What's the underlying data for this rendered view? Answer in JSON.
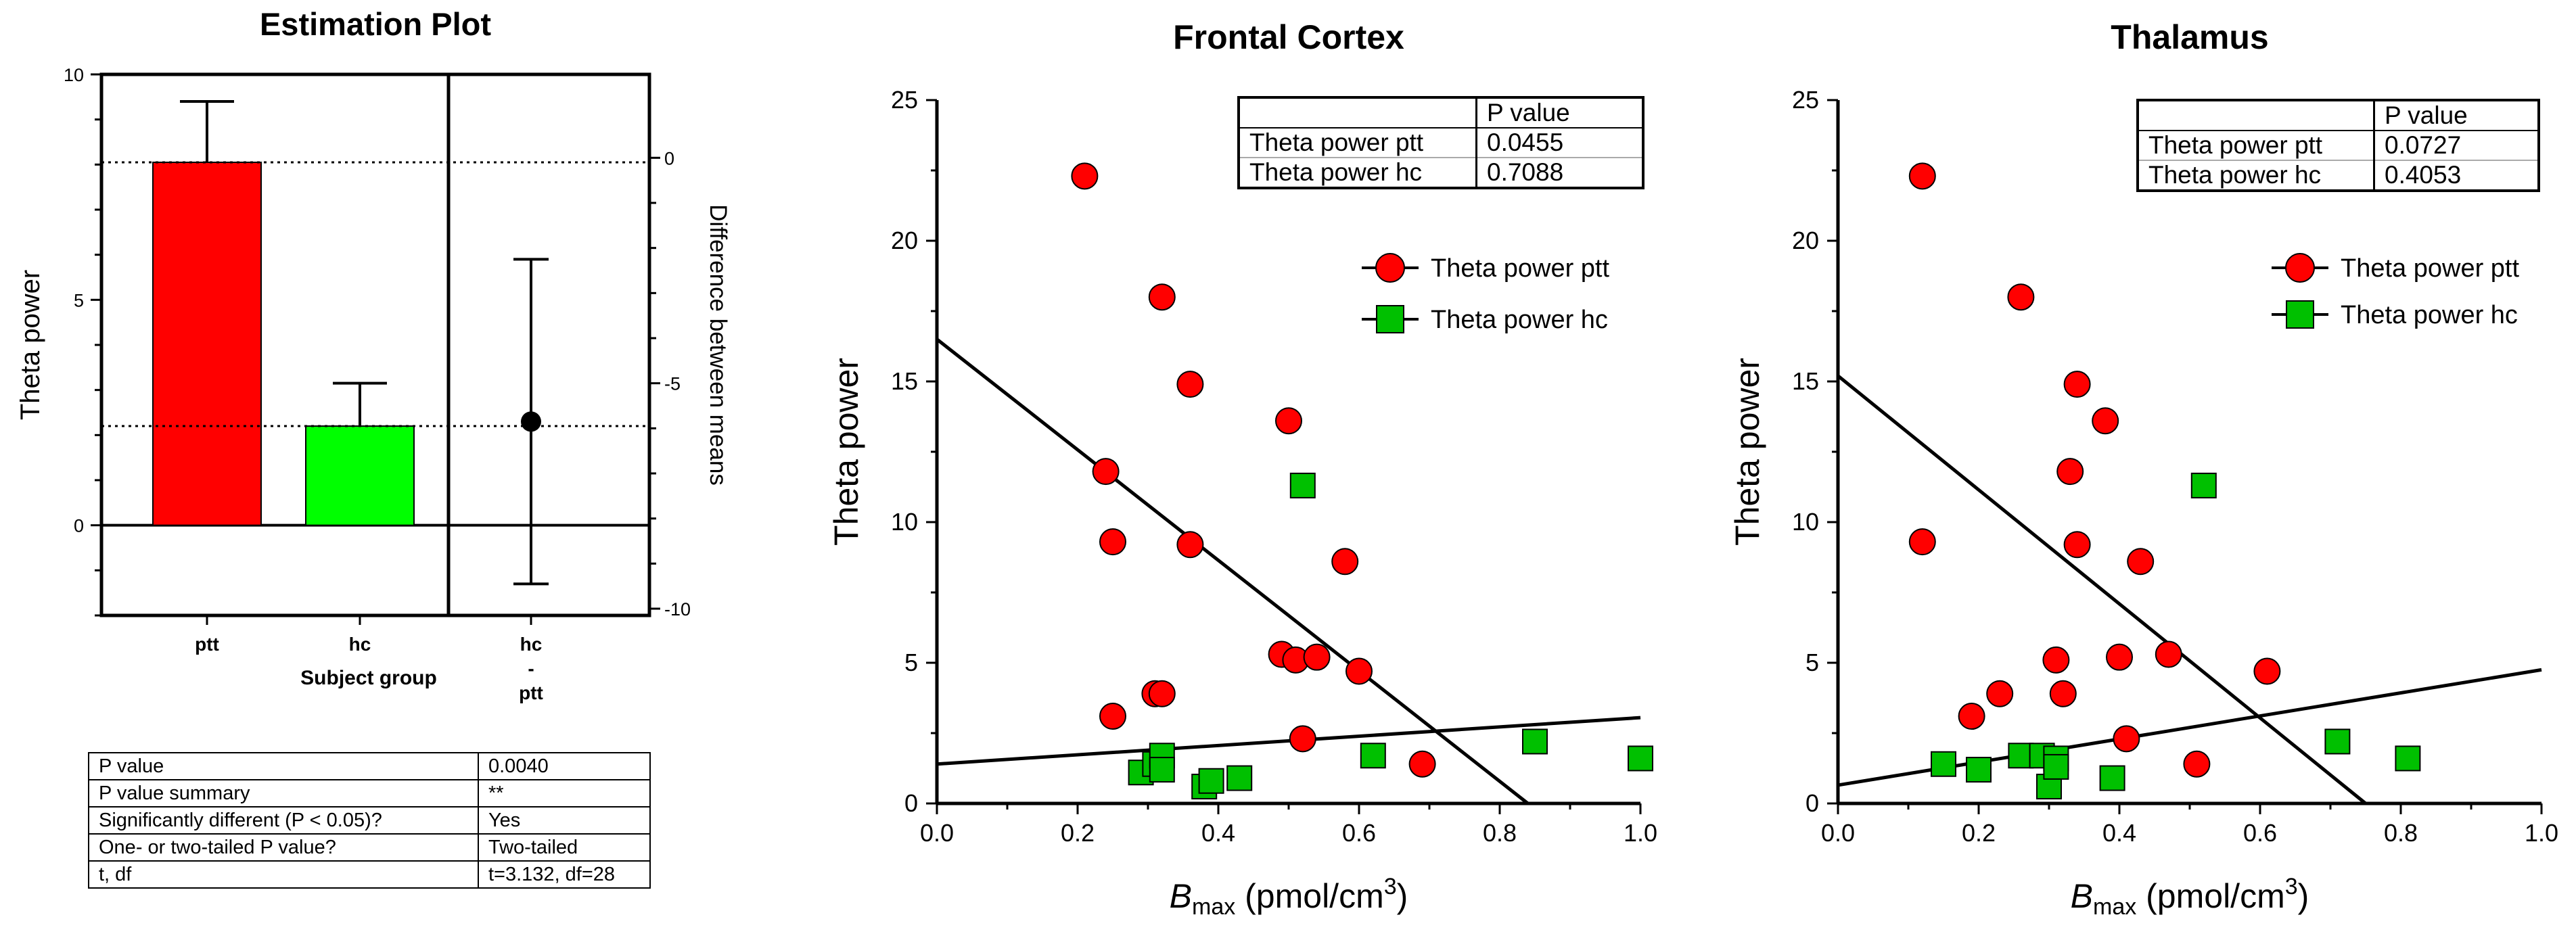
{
  "chart_data": [
    {
      "type": "bar",
      "title": "Estimation Plot",
      "xlabel": "Subject group",
      "ylabel": "Theta power",
      "right_ylabel": "Difference between means",
      "categories": [
        "ptt",
        "hc"
      ],
      "values": [
        8.05,
        2.2
      ],
      "error_upper": [
        9.4,
        3.15
      ],
      "bar_colors": [
        "#ff0000",
        "#00ff00"
      ],
      "ylim": [
        -2,
        10
      ],
      "yticks": [
        0,
        5,
        10
      ],
      "right_ylim": [
        -10.15,
        1.85
      ],
      "right_yticks": [
        0,
        -5,
        -10
      ],
      "difference": {
        "label_lines": [
          "hc",
          "-",
          "ptt"
        ],
        "mean": -5.85,
        "ci_low": -9.45,
        "ci_high": -2.25
      },
      "stats_table": [
        [
          "P value",
          "0.0040"
        ],
        [
          "P value summary",
          "**"
        ],
        [
          "Significantly different (P < 0.05)?",
          "Yes"
        ],
        [
          "One- or two-tailed P value?",
          "Two-tailed"
        ],
        [
          "t, df",
          "t=3.132, df=28"
        ]
      ]
    },
    {
      "type": "scatter",
      "title": "Frontal Cortex",
      "xlabel_main": "B",
      "xlabel_sub": "max",
      "xlabel_rest": " (pmol/cm",
      "xlabel_sup": "3",
      "xlabel_close": ")",
      "ylabel": "Theta power",
      "xlim": [
        0,
        1.0
      ],
      "ylim": [
        0,
        25
      ],
      "xticks": [
        "0.0",
        "0.2",
        "0.4",
        "0.6",
        "0.8",
        "1.0"
      ],
      "yticks": [
        "0",
        "5",
        "10",
        "15",
        "20",
        "25"
      ],
      "series": [
        {
          "name": "Theta power ptt",
          "marker": "circle",
          "color": "#ff0000",
          "points": [
            [
              0.21,
              22.3
            ],
            [
              0.24,
              11.8
            ],
            [
              0.25,
              9.3
            ],
            [
              0.25,
              3.1
            ],
            [
              0.31,
              3.9
            ],
            [
              0.32,
              3.9
            ],
            [
              0.32,
              18.0
            ],
            [
              0.36,
              14.9
            ],
            [
              0.36,
              9.2
            ],
            [
              0.49,
              5.3
            ],
            [
              0.5,
              13.6
            ],
            [
              0.51,
              5.1
            ],
            [
              0.52,
              2.3
            ],
            [
              0.54,
              5.2
            ],
            [
              0.58,
              8.6
            ],
            [
              0.6,
              4.7
            ],
            [
              0.69,
              1.4
            ]
          ]
        },
        {
          "name": "Theta power hc",
          "marker": "square",
          "color": "#00c000",
          "points": [
            [
              0.29,
              1.1
            ],
            [
              0.31,
              1.4
            ],
            [
              0.32,
              1.7
            ],
            [
              0.32,
              1.2
            ],
            [
              0.38,
              0.6
            ],
            [
              0.39,
              0.8
            ],
            [
              0.43,
              0.9
            ],
            [
              0.52,
              11.3
            ],
            [
              0.62,
              1.7
            ],
            [
              0.85,
              2.2
            ],
            [
              1.0,
              1.6
            ]
          ]
        }
      ],
      "fit_lines": [
        {
          "name": "ptt fit",
          "from": [
            0.0,
            16.5
          ],
          "to": [
            0.84,
            0.0
          ]
        },
        {
          "name": "hc fit",
          "from": [
            0.0,
            1.4
          ],
          "to": [
            1.0,
            3.05
          ]
        }
      ],
      "pvalue_table": {
        "header": "P value",
        "rows": [
          [
            "Theta power ptt",
            "0.0455"
          ],
          [
            "Theta power hc",
            "0.7088"
          ]
        ]
      }
    },
    {
      "type": "scatter",
      "title": "Thalamus",
      "xlabel_main": "B",
      "xlabel_sub": "max",
      "xlabel_rest": " (pmol/cm",
      "xlabel_sup": "3",
      "xlabel_close": ")",
      "ylabel": "Theta power",
      "xlim": [
        0,
        1.0
      ],
      "ylim": [
        0,
        25
      ],
      "xticks": [
        "0.0",
        "0.2",
        "0.4",
        "0.6",
        "0.8",
        "1.0"
      ],
      "yticks": [
        "0",
        "5",
        "10",
        "15",
        "20",
        "25"
      ],
      "series": [
        {
          "name": "Theta power ptt",
          "marker": "circle",
          "color": "#ff0000",
          "points": [
            [
              0.12,
              22.3
            ],
            [
              0.12,
              9.3
            ],
            [
              0.19,
              3.1
            ],
            [
              0.23,
              3.9
            ],
            [
              0.26,
              18.0
            ],
            [
              0.31,
              5.1
            ],
            [
              0.32,
              3.9
            ],
            [
              0.33,
              11.8
            ],
            [
              0.34,
              14.9
            ],
            [
              0.34,
              9.2
            ],
            [
              0.38,
              13.6
            ],
            [
              0.4,
              5.2
            ],
            [
              0.41,
              2.3
            ],
            [
              0.43,
              8.6
            ],
            [
              0.47,
              5.3
            ],
            [
              0.51,
              1.4
            ],
            [
              0.61,
              4.7
            ]
          ]
        },
        {
          "name": "Theta power hc",
          "marker": "square",
          "color": "#00c000",
          "points": [
            [
              0.15,
              1.4
            ],
            [
              0.2,
              1.2
            ],
            [
              0.26,
              1.7
            ],
            [
              0.29,
              1.7
            ],
            [
              0.3,
              0.6
            ],
            [
              0.31,
              1.6
            ],
            [
              0.31,
              1.3
            ],
            [
              0.39,
              0.9
            ],
            [
              0.52,
              11.3
            ],
            [
              0.71,
              2.2
            ],
            [
              0.81,
              1.6
            ]
          ]
        }
      ],
      "fit_lines": [
        {
          "name": "ptt fit",
          "from": [
            0.0,
            15.2
          ],
          "to": [
            0.75,
            0.0
          ]
        },
        {
          "name": "hc fit",
          "from": [
            0.0,
            0.65
          ],
          "to": [
            1.0,
            4.75
          ]
        }
      ],
      "pvalue_table": {
        "header": "P value",
        "rows": [
          [
            "Theta power ptt",
            "0.0727"
          ],
          [
            "Theta power hc",
            "0.4053"
          ]
        ]
      }
    }
  ]
}
